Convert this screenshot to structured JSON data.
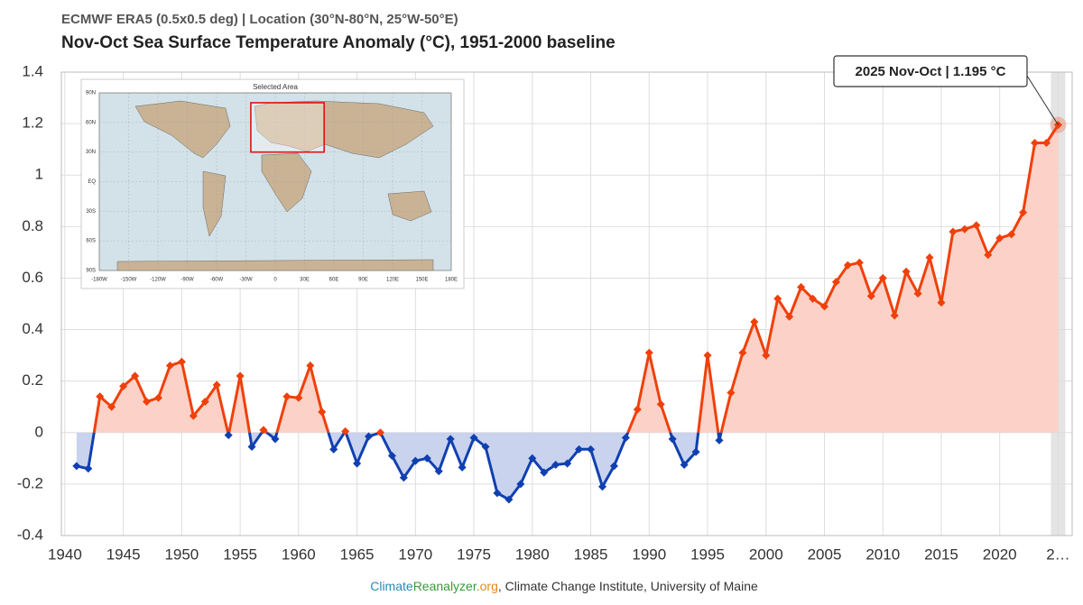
{
  "chart_data": {
    "type": "line",
    "subtitle": "ECMWF ERA5 (0.5x0.5 deg) | Location (30°N-80°N, 25°W-50°E)",
    "title": "Nov-Oct Sea Surface Temperature Anomaly (°C), 1951-2000 baseline",
    "x": [
      1941,
      1942,
      1943,
      1944,
      1945,
      1946,
      1947,
      1948,
      1949,
      1950,
      1951,
      1952,
      1953,
      1954,
      1955,
      1956,
      1957,
      1958,
      1959,
      1960,
      1961,
      1962,
      1963,
      1964,
      1965,
      1966,
      1967,
      1968,
      1969,
      1970,
      1971,
      1972,
      1973,
      1974,
      1975,
      1976,
      1977,
      1978,
      1979,
      1980,
      1981,
      1982,
      1983,
      1984,
      1985,
      1986,
      1987,
      1988,
      1989,
      1990,
      1991,
      1992,
      1993,
      1994,
      1995,
      1996,
      1997,
      1998,
      1999,
      2000,
      2001,
      2002,
      2003,
      2004,
      2005,
      2006,
      2007,
      2008,
      2009,
      2010,
      2011,
      2012,
      2013,
      2014,
      2015,
      2016,
      2017,
      2018,
      2019,
      2020,
      2021,
      2022,
      2023,
      2024,
      2025
    ],
    "series": [
      {
        "name": "Nov-Oct",
        "color": "#f0400a",
        "negative_color": "#1040b0",
        "values": [
          -0.13,
          -0.14,
          0.14,
          0.1,
          0.18,
          0.22,
          0.12,
          0.135,
          0.26,
          0.275,
          0.065,
          0.12,
          0.185,
          -0.01,
          0.22,
          -0.055,
          0.01,
          -0.025,
          0.14,
          0.135,
          0.26,
          0.08,
          -0.065,
          0.005,
          -0.12,
          -0.015,
          0.0,
          -0.09,
          -0.175,
          -0.11,
          -0.1,
          -0.15,
          -0.025,
          -0.135,
          -0.02,
          -0.055,
          -0.235,
          -0.26,
          -0.2,
          -0.1,
          -0.155,
          -0.125,
          -0.12,
          -0.065,
          -0.065,
          -0.21,
          -0.13,
          -0.02,
          0.09,
          0.31,
          0.11,
          -0.025,
          -0.125,
          -0.075,
          0.3,
          -0.03,
          0.155,
          0.31,
          0.43,
          0.3,
          0.52,
          0.45,
          0.565,
          0.52,
          0.49,
          0.585,
          0.65,
          0.66,
          0.53,
          0.6,
          0.455,
          0.625,
          0.54,
          0.68,
          0.505,
          0.78,
          0.79,
          0.805,
          0.69,
          0.755,
          0.77,
          0.855,
          1.125,
          1.125,
          1.195
        ]
      }
    ],
    "xlim": [
      1939.7,
      2026.2
    ],
    "xticks": [
      1940,
      1945,
      1950,
      1955,
      1960,
      1965,
      1970,
      1975,
      1980,
      1985,
      1990,
      1995,
      2000,
      2005,
      2010,
      2015,
      2020,
      {
        "value": 2025,
        "label": "2…"
      }
    ],
    "ylim": [
      -0.4,
      1.4
    ],
    "yticks": [
      1.4,
      1.2,
      1,
      0.8,
      0.6,
      0.4,
      0.2,
      0,
      -0.2,
      -0.4
    ],
    "grid": true,
    "annotation": "2025 Nov-Oct | 1.195 °C",
    "inset": {
      "title": "Selected Area",
      "lat_labels": [
        "90N",
        "60N",
        "30N",
        "EQ",
        "30S",
        "60S",
        "90S"
      ],
      "lon_labels": [
        "-180W",
        "-150W",
        "-120W",
        "-90W",
        "-60W",
        "-30W",
        "0",
        "30E",
        "60E",
        "90E",
        "120E",
        "150E",
        "180E"
      ]
    },
    "source": [
      "Climate",
      "Reanalyzer",
      ".org",
      ", Climate Change Institute, University of Maine"
    ]
  }
}
